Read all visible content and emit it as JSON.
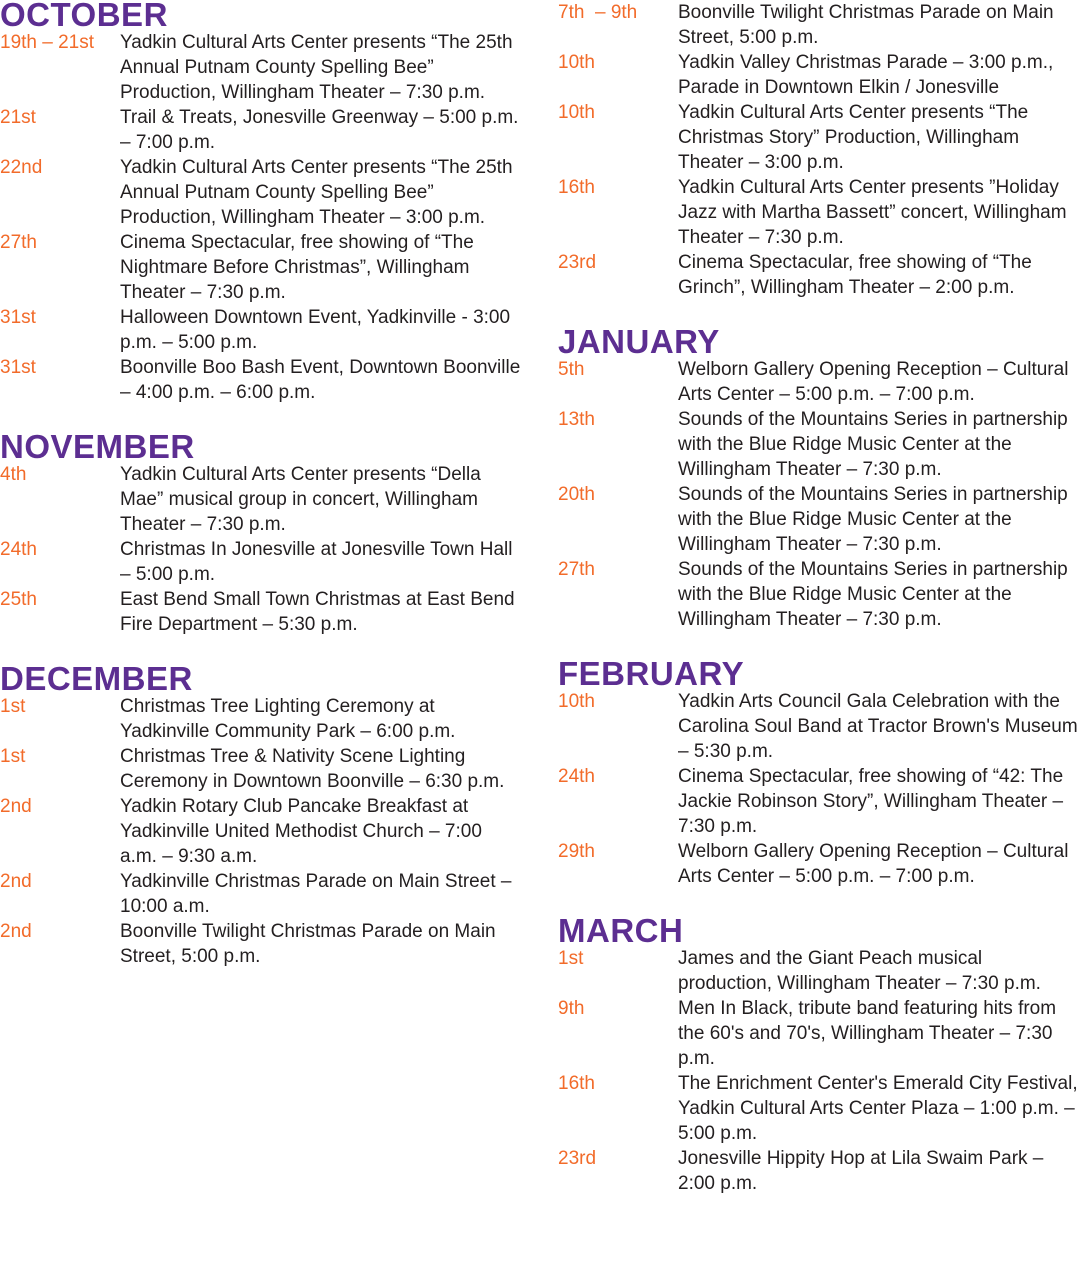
{
  "columns": [
    {
      "sections": [
        {
          "heading": "OCTOBER",
          "events": [
            {
              "date": "19th – 21st",
              "text": "Yadkin Cultural Arts Center presents “The 25th Annual Putnam County Spelling Bee” Production, Willingham Theater – 7:30 p.m."
            },
            {
              "date": "21st",
              "text": "Trail & Treats, Jonesville Greenway – 5:00 p.m. – 7:00 p.m."
            },
            {
              "date": "22nd",
              "text": "Yadkin Cultural Arts Center presents “The 25th Annual Putnam County Spelling Bee” Production, Willingham Theater – 3:00 p.m."
            },
            {
              "date": "27th",
              "text": "Cinema Spectacular, free showing of “The Nightmare Before Christmas”, Willingham Theater – 7:30 p.m."
            },
            {
              "date": "31st",
              "text": "Halloween Downtown Event, Yadkinville - 3:00 p.m. – 5:00 p.m."
            },
            {
              "date": "31st",
              "text": "Boonville Boo Bash Event, Downtown Boonville – 4:00 p.m. – 6:00 p.m."
            }
          ]
        },
        {
          "heading": "NOVEMBER",
          "events": [
            {
              "date": "4th",
              "text": "Yadkin Cultural Arts Center presents “Della Mae” musical group in concert, Willingham Theater – 7:30 p.m."
            },
            {
              "date": "24th",
              "text": "Christmas In Jonesville at Jonesville Town Hall – 5:00 p.m."
            },
            {
              "date": "25th",
              "text": "East Bend Small Town Christmas at East Bend Fire Department – 5:30 p.m."
            }
          ]
        },
        {
          "heading": "DECEMBER",
          "events": [
            {
              "date": "1st",
              "text": "Christmas Tree Lighting Ceremony at Yadkinville Community Park – 6:00 p.m."
            },
            {
              "date": "1st",
              "text": "Christmas Tree & Nativity Scene Lighting Ceremony in Downtown Boonville – 6:30 p.m."
            },
            {
              "date": "2nd",
              "text": "Yadkin Rotary Club Pancake Breakfast at Yadkinville United Methodist Church – 7:00 a.m. – 9:30 a.m."
            },
            {
              "date": "2nd",
              "text": "Yadkinville Christmas Parade on Main Street – 10:00 a.m."
            },
            {
              "date": "2nd",
              "text": "Boonville Twilight Christmas Parade on Main Street, 5:00 p.m."
            }
          ]
        }
      ]
    },
    {
      "sections": [
        {
          "events": [
            {
              "date": "7th  – 9th",
              "text": "Boonville Twilight Christmas Parade on Main Street, 5:00 p.m."
            },
            {
              "date": "10th",
              "text": "Yadkin Valley Christmas Parade – 3:00 p.m., Parade in Downtown Elkin / Jonesville"
            },
            {
              "date": "10th",
              "text": "Yadkin Cultural Arts Center presents “The Christmas Story” Production, Willingham Theater – 3:00 p.m."
            },
            {
              "date": "16th",
              "text": "Yadkin Cultural Arts Center presents ”Holiday Jazz with Martha Bassett” concert, Willingham Theater – 7:30 p.m."
            },
            {
              "date": "23rd",
              "text": "Cinema Spectacular, free showing of “The Grinch”, Willingham Theater – 2:00 p.m."
            }
          ]
        },
        {
          "heading": "JANUARY",
          "events": [
            {
              "date": "5th",
              "text": "Welborn Gallery Opening Reception – Cultural Arts Center – 5:00 p.m. – 7:00 p.m."
            },
            {
              "date": "13th",
              "text": "Sounds of the Mountains Series in partnership with the Blue Ridge Music Center at the Willingham Theater – 7:30 p.m."
            },
            {
              "date": "20th",
              "text": "Sounds of the Mountains Series in partnership with the Blue Ridge Music Center at the Willingham Theater – 7:30 p.m."
            },
            {
              "date": "27th",
              "text": "Sounds of the Mountains Series in partnership with the Blue Ridge Music Center at the Willingham Theater – 7:30 p.m."
            }
          ]
        },
        {
          "heading": "FEBRUARY",
          "events": [
            {
              "date": "10th",
              "text": "Yadkin Arts Council Gala Celebration with the Carolina Soul Band at Tractor Brown's Museum – 5:30 p.m."
            },
            {
              "date": "24th",
              "text": "Cinema Spectacular, free showing of “42: The Jackie Robinson Story”, Willingham Theater – 7:30 p.m."
            },
            {
              "date": "29th",
              "text": "Welborn Gallery Opening Reception – Cultural Arts Center – 5:00 p.m. – 7:00 p.m."
            }
          ]
        },
        {
          "heading": "MARCH",
          "events": [
            {
              "date": "1st",
              "text": "James and the Giant Peach musical production, Willingham Theater – 7:30 p.m."
            },
            {
              "date": "9th",
              "text": "Men In Black, tribute band featuring hits from the 60's and 70's, Willingham Theater – 7:30 p.m."
            },
            {
              "date": "16th",
              "text": "The Enrichment Center's Emerald City Festival, Yadkin Cultural Arts Center Plaza – 1:00 p.m. – 5:00 p.m."
            },
            {
              "date": "23rd",
              "text": "Jonesville Hippity Hop at Lila Swaim Park – 2:00 p.m."
            }
          ]
        }
      ]
    }
  ]
}
